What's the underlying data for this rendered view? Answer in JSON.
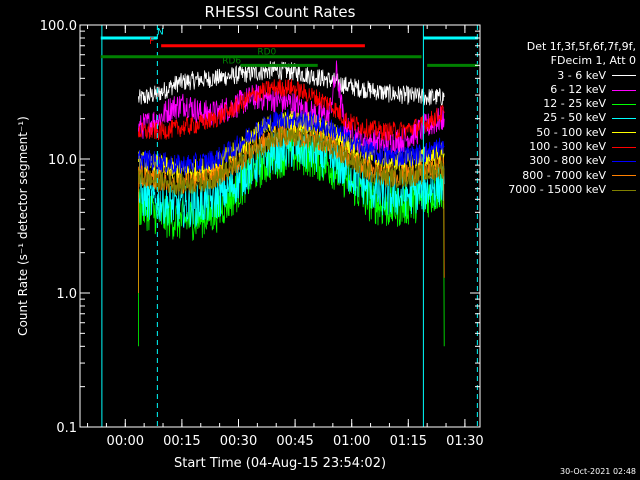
{
  "chart_data": {
    "type": "line",
    "title": "RHESSI Count Rates",
    "xlabel": "Start Time (04-Aug-15 23:54:02)",
    "ylabel": "Count Rate (s⁻¹ detector segment⁻¹)",
    "ylog": true,
    "ylim": [
      0.1,
      100
    ],
    "xlim_min": [
      -6,
      33
    ],
    "x_unit": "minutes after 04-Aug-15 23:54:02",
    "x_ticks": [
      {
        "label": "00:00",
        "t": 6
      },
      {
        "label": "00:15",
        "t": 21
      },
      {
        "label": "00:30",
        "t": 36
      },
      {
        "label": "00:45",
        "t": 51
      },
      {
        "label": "01:00",
        "t": 66
      },
      {
        "label": "01:15",
        "t": 81
      },
      {
        "label": "01:30",
        "t": 96
      }
    ],
    "y_ticks": [
      {
        "label": "0.1",
        "v": 0.1
      },
      {
        "label": "1.0",
        "v": 1
      },
      {
        "label": "10.0",
        "v": 10
      },
      {
        "label": "100.0",
        "v": 100
      }
    ],
    "legend": {
      "header": [
        "Det 1f,3f,5f,6f,7f,9f,",
        "FDecim 1, Att 0"
      ],
      "position": "right"
    },
    "series": [
      {
        "name": "3 - 6 keV",
        "color": "#ffffff",
        "start": 9.5,
        "end": 90.5,
        "points": [
          [
            9.5,
            28
          ],
          [
            15,
            31
          ],
          [
            20,
            37
          ],
          [
            25,
            39
          ],
          [
            30,
            40
          ],
          [
            35,
            42
          ],
          [
            40,
            44
          ],
          [
            45,
            46
          ],
          [
            50,
            45
          ],
          [
            55,
            42
          ],
          [
            60,
            39
          ],
          [
            65,
            35
          ],
          [
            70,
            33
          ],
          [
            75,
            31
          ],
          [
            80,
            30
          ],
          [
            85,
            29
          ],
          [
            90,
            29
          ]
        ]
      },
      {
        "name": "6 - 12 keV",
        "color": "#ff00ff",
        "start": 9.5,
        "end": 90.5,
        "points": [
          [
            9.5,
            17
          ],
          [
            15,
            20
          ],
          [
            18,
            24
          ],
          [
            22,
            26
          ],
          [
            26,
            22
          ],
          [
            30,
            22
          ],
          [
            35,
            25
          ],
          [
            40,
            29
          ],
          [
            45,
            28
          ],
          [
            50,
            26
          ],
          [
            55,
            22
          ],
          [
            60,
            21
          ],
          [
            62,
            45
          ],
          [
            64,
            18
          ],
          [
            68,
            14
          ],
          [
            74,
            13
          ],
          [
            80,
            14
          ],
          [
            85,
            17
          ],
          [
            90,
            20
          ]
        ]
      },
      {
        "name": "12 - 25 keV",
        "color": "#00ff00",
        "start": 9.5,
        "end": 90.5,
        "points": [
          [
            9.5,
            4.5
          ],
          [
            15,
            3.8
          ],
          [
            20,
            3.5
          ],
          [
            25,
            3.6
          ],
          [
            30,
            4.0
          ],
          [
            35,
            5.5
          ],
          [
            40,
            8.0
          ],
          [
            45,
            10
          ],
          [
            50,
            11
          ],
          [
            55,
            10.5
          ],
          [
            60,
            9
          ],
          [
            65,
            7
          ],
          [
            70,
            5
          ],
          [
            75,
            4.3
          ],
          [
            80,
            4.5
          ],
          [
            85,
            5.0
          ],
          [
            90,
            6.0
          ]
        ]
      },
      {
        "name": "25 - 50 keV",
        "color": "#00ffff",
        "start": 9.5,
        "end": 90.5,
        "points": [
          [
            9.5,
            5.2
          ],
          [
            15,
            4.8
          ],
          [
            20,
            4.4
          ],
          [
            25,
            4.5
          ],
          [
            30,
            5.0
          ],
          [
            35,
            6.5
          ],
          [
            40,
            9.0
          ],
          [
            45,
            11
          ],
          [
            50,
            12
          ],
          [
            55,
            11.5
          ],
          [
            60,
            10
          ],
          [
            65,
            8
          ],
          [
            70,
            6.2
          ],
          [
            75,
            5.2
          ],
          [
            80,
            5.3
          ],
          [
            85,
            5.8
          ],
          [
            90,
            6.5
          ]
        ]
      },
      {
        "name": "50 - 100 keV",
        "color": "#ffff00",
        "start": 9.5,
        "end": 90.5,
        "points": [
          [
            9.5,
            9.5
          ],
          [
            15,
            8.8
          ],
          [
            20,
            8.0
          ],
          [
            25,
            8.2
          ],
          [
            30,
            9.0
          ],
          [
            35,
            11
          ],
          [
            40,
            15
          ],
          [
            45,
            18
          ],
          [
            50,
            19
          ],
          [
            55,
            18
          ],
          [
            60,
            16
          ],
          [
            65,
            13
          ],
          [
            70,
            10.5
          ],
          [
            75,
            9.5
          ],
          [
            80,
            9.6
          ],
          [
            85,
            10.2
          ],
          [
            90,
            11
          ]
        ]
      },
      {
        "name": "100 - 300 keV",
        "color": "#ff0000",
        "start": 9.5,
        "end": 90.5,
        "points": [
          [
            9.5,
            16
          ],
          [
            15,
            16
          ],
          [
            20,
            17
          ],
          [
            25,
            18
          ],
          [
            30,
            20
          ],
          [
            35,
            24
          ],
          [
            40,
            30
          ],
          [
            45,
            34
          ],
          [
            50,
            34
          ],
          [
            55,
            30
          ],
          [
            60,
            26
          ],
          [
            65,
            19
          ],
          [
            70,
            17
          ],
          [
            75,
            16
          ],
          [
            80,
            16.5
          ],
          [
            85,
            18
          ],
          [
            90,
            22
          ]
        ]
      },
      {
        "name": "300 - 800 keV",
        "color": "#0000ff",
        "start": 9.5,
        "end": 90.5,
        "points": [
          [
            9.5,
            10
          ],
          [
            15,
            9.5
          ],
          [
            20,
            9.0
          ],
          [
            25,
            9.2
          ],
          [
            30,
            10
          ],
          [
            35,
            12
          ],
          [
            40,
            16
          ],
          [
            45,
            19
          ],
          [
            50,
            20
          ],
          [
            55,
            19
          ],
          [
            60,
            17
          ],
          [
            65,
            14
          ],
          [
            70,
            11.5
          ],
          [
            75,
            10.5
          ],
          [
            80,
            10.5
          ],
          [
            85,
            11
          ],
          [
            90,
            12.5
          ]
        ]
      },
      {
        "name": "800 - 7000 keV",
        "color": "#ff8000",
        "start": 9.5,
        "end": 90.5,
        "points": [
          [
            9.5,
            7.5
          ],
          [
            15,
            7.0
          ],
          [
            20,
            6.6
          ],
          [
            25,
            6.8
          ],
          [
            30,
            7.4
          ],
          [
            35,
            9.0
          ],
          [
            40,
            12
          ],
          [
            45,
            14.5
          ],
          [
            50,
            15
          ],
          [
            55,
            14.5
          ],
          [
            60,
            13
          ],
          [
            65,
            10.5
          ],
          [
            70,
            8.5
          ],
          [
            75,
            7.6
          ],
          [
            80,
            7.6
          ],
          [
            85,
            8.0
          ],
          [
            90,
            8.8
          ]
        ]
      },
      {
        "name": "7000 - 15000 keV",
        "color": "#808000",
        "start": 9.5,
        "end": 90.5,
        "points": [
          [
            9.5,
            7.2
          ],
          [
            15,
            6.8
          ],
          [
            20,
            6.4
          ],
          [
            25,
            6.6
          ],
          [
            30,
            7.2
          ],
          [
            35,
            8.8
          ],
          [
            40,
            11.5
          ],
          [
            45,
            14
          ],
          [
            50,
            14.5
          ],
          [
            55,
            14
          ],
          [
            60,
            12.5
          ],
          [
            65,
            10
          ],
          [
            70,
            8.2
          ],
          [
            75,
            7.3
          ],
          [
            80,
            7.3
          ],
          [
            85,
            7.7
          ],
          [
            90,
            8.5
          ]
        ]
      }
    ],
    "annotations": [
      {
        "label": "N",
        "color": "#00ffff",
        "bar_from": -0.5,
        "bar_to": 14.5,
        "bar_value": 80,
        "label_t": 15.3,
        "label_value": 82
      },
      {
        "label": "N",
        "color": "#00ffff",
        "bar_from": 85,
        "bar_to": 99.5,
        "bar_value": 80
      },
      {
        "label": "F",
        "color": "#ff0000",
        "bar_from": 15.5,
        "bar_to": 69.5,
        "bar_value": 70,
        "label_t": 13.0,
        "label_value": 70
      },
      {
        "label": "RD0",
        "color": "#008000",
        "bar_from": -0.5,
        "bar_to": 84.5,
        "bar_value": 58,
        "label_t": 43.5,
        "label_value": 58
      },
      {
        "label": "RD6",
        "color": "#008000",
        "bar_from": 36.5,
        "bar_to": 57,
        "bar_value": 50,
        "label_t": 34.2,
        "label_value": 50
      },
      {
        "label": "RD6",
        "color": "#008000",
        "bar_from": 86,
        "bar_to": 99.5,
        "bar_value": 50
      }
    ],
    "vlines": [
      {
        "t": 14.5,
        "style": "dashed",
        "color": "#00ffff"
      },
      {
        "t": 85.0,
        "style": "solid",
        "color": "#00ffff"
      },
      {
        "t": 99.3,
        "style": "dashed",
        "color": "#00ffff"
      },
      {
        "t": -0.2,
        "style": "solid",
        "color": "#00ffff"
      }
    ],
    "grid": false
  },
  "timestamp": "30-Oct-2021 02:48"
}
